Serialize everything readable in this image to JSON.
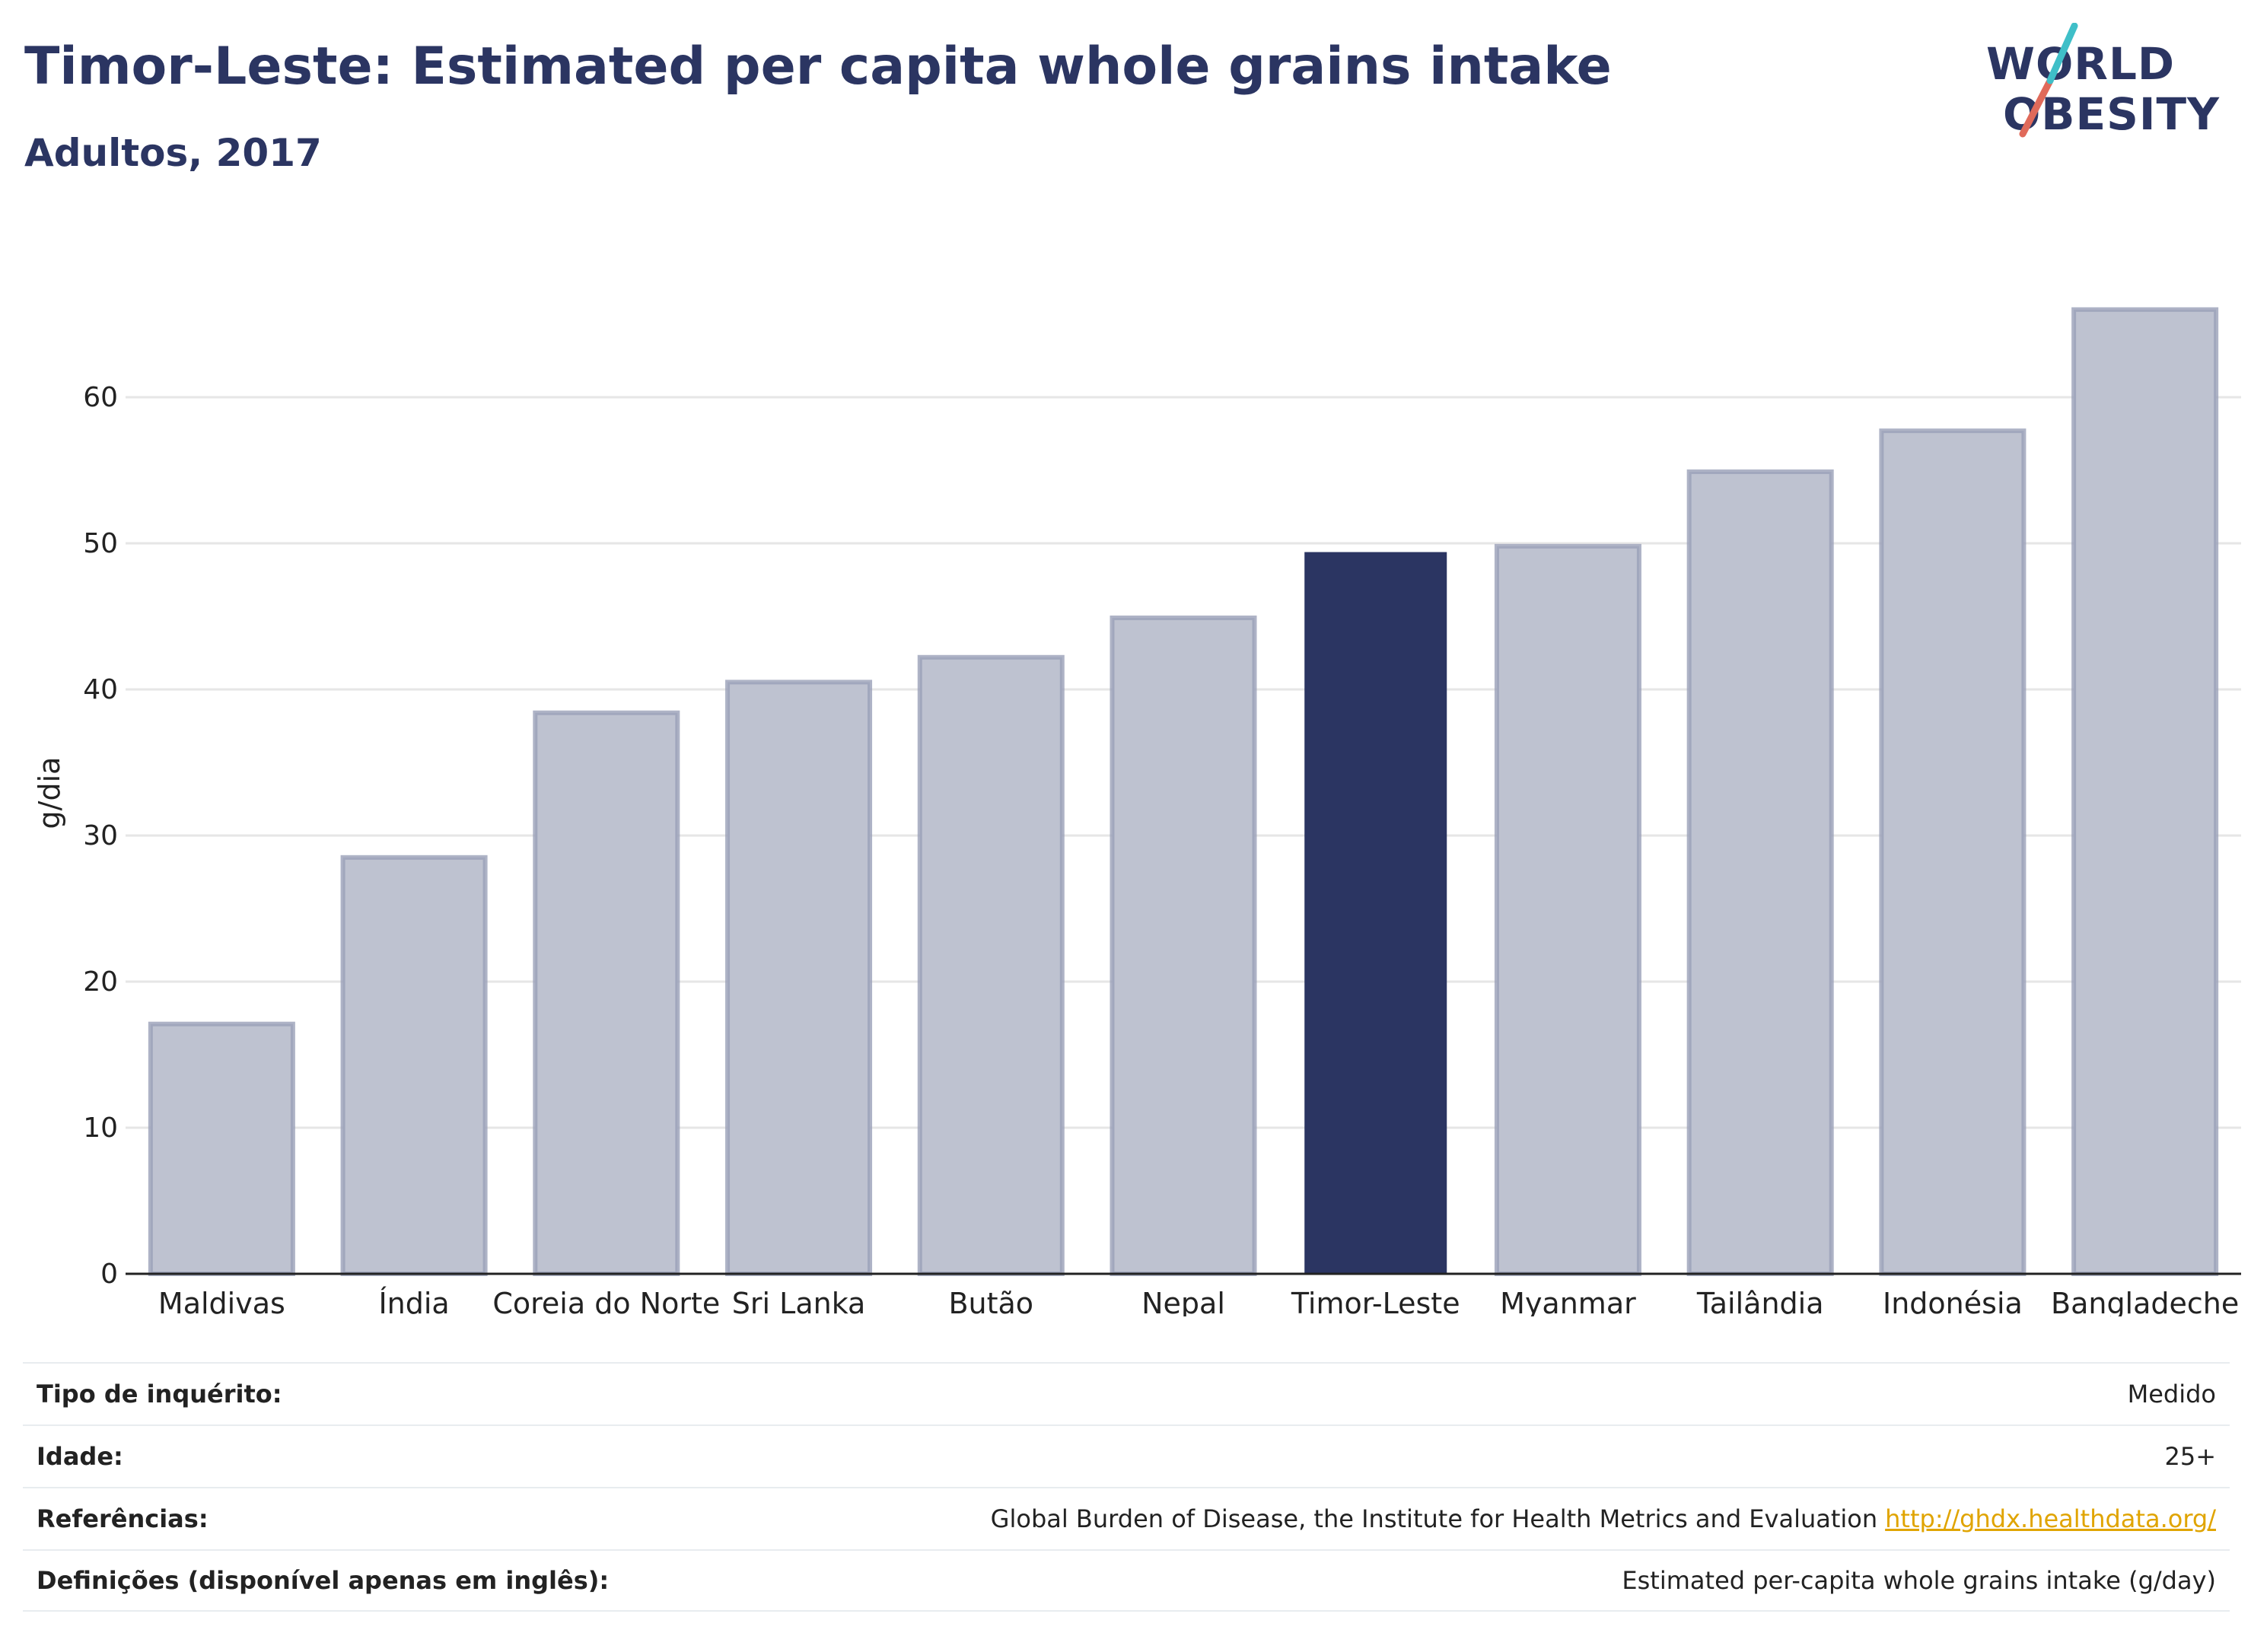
{
  "title": "Timor-Leste: Estimated per capita whole grains intake",
  "subtitle": "Adultos, 2017",
  "logo": {
    "line1": "WORLD",
    "line2": "OBESITY",
    "accent_colors": [
      "#3fbfc8",
      "#e06a5a"
    ]
  },
  "colors": {
    "highlight": "#2b3562",
    "other": "#bec2d0",
    "other_edge": "#9aa0b8",
    "grid": "#e6e6e6",
    "link": "#e0a400"
  },
  "chart_data": {
    "type": "bar",
    "ylabel": "g/dia",
    "xlabel": "",
    "ylim": [
      0,
      70
    ],
    "yticks": [
      0,
      10,
      20,
      30,
      40,
      50,
      60
    ],
    "grid": true,
    "highlight": "Timor-Leste",
    "categories": [
      "Maldivas",
      "Índia",
      "Coreia do Norte",
      "Sri Lanka",
      "Butão",
      "Nepal",
      "Timor-Leste",
      "Myanmar",
      "Tailândia",
      "Indonésia",
      "Bangladeche"
    ],
    "values": [
      17.1,
      28.5,
      38.4,
      40.5,
      42.2,
      44.9,
      49.4,
      49.8,
      54.9,
      57.7,
      66.0
    ]
  },
  "info": [
    {
      "label": "Tipo de inquérito:",
      "value": "Medido"
    },
    {
      "label": "Idade:",
      "value": "25+"
    },
    {
      "label": "Referências:",
      "value": "Global Burden of Disease, the Institute for Health Metrics and Evaluation",
      "link": "http://ghdx.healthdata.org/"
    },
    {
      "label": "Definições (disponível apenas em inglês):",
      "value": "Estimated per-capita whole grains intake (g/day)"
    }
  ]
}
